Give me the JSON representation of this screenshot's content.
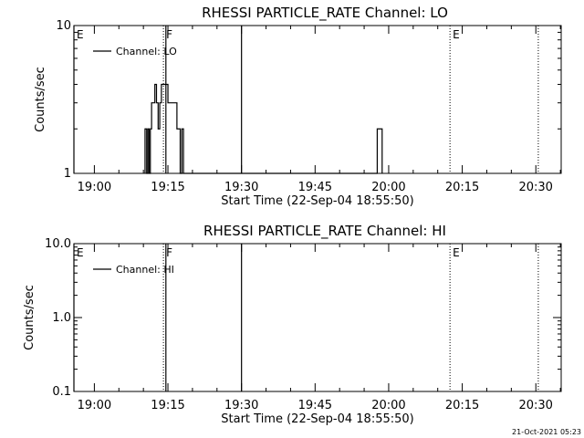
{
  "chart_data": [
    {
      "type": "line",
      "title": "RHESSI PARTICLE_RATE Channel: LO",
      "xlabel": "Start Time (22-Sep-04 18:55:50)",
      "ylabel": "Counts/sec",
      "yscale": "log",
      "ylim": [
        1,
        10
      ],
      "xlim": [
        "18:55:50",
        "20:35:10"
      ],
      "x_ticks": [
        "19:00",
        "19:15",
        "19:30",
        "19:45",
        "20:00",
        "20:15",
        "20:30"
      ],
      "y_ticks": [
        "1",
        "10"
      ],
      "grid": false,
      "legend": {
        "position": "top-left",
        "entries": [
          "Channel: LO"
        ]
      },
      "markers": [
        {
          "label": "E",
          "time": "18:55:50",
          "style": "solid"
        },
        {
          "label": "F",
          "time": "19:14:05",
          "style": "dotted"
        },
        {
          "label": "",
          "time": "19:14:35",
          "style": "solid"
        },
        {
          "label": "",
          "time": "19:30:00",
          "style": "solid"
        },
        {
          "label": "E",
          "time": "20:12:30",
          "style": "dotted"
        },
        {
          "label": "",
          "time": "20:30:30",
          "style": "dotted"
        }
      ],
      "series": [
        {
          "name": "Channel: LO",
          "color": "#000000",
          "points": [
            [
              "19:10:20",
              1
            ],
            [
              "19:10:20",
              2
            ],
            [
              "19:10:40",
              2
            ],
            [
              "19:10:40",
              1
            ],
            [
              "19:10:55",
              1
            ],
            [
              "19:10:55",
              2
            ],
            [
              "19:11:10",
              2
            ],
            [
              "19:11:10",
              1
            ],
            [
              "19:11:25",
              1
            ],
            [
              "19:11:25",
              2
            ],
            [
              "19:11:40",
              2
            ],
            [
              "19:11:40",
              3
            ],
            [
              "19:12:20",
              3
            ],
            [
              "19:12:20",
              4
            ],
            [
              "19:12:40",
              4
            ],
            [
              "19:12:40",
              3
            ],
            [
              "19:13:00",
              3
            ],
            [
              "19:13:00",
              2
            ],
            [
              "19:13:20",
              2
            ],
            [
              "19:13:20",
              3
            ],
            [
              "19:13:40",
              3
            ],
            [
              "19:13:40",
              4
            ],
            [
              "19:15:00",
              4
            ],
            [
              "19:15:00",
              3
            ],
            [
              "19:16:50",
              3
            ],
            [
              "19:16:50",
              2
            ],
            [
              "19:17:30",
              2
            ],
            [
              "19:17:30",
              1
            ],
            [
              "19:17:50",
              1
            ],
            [
              "19:17:50",
              2
            ],
            [
              "19:18:10",
              2
            ],
            [
              "19:18:10",
              1
            ],
            [
              "19:57:40",
              1
            ],
            [
              "19:57:40",
              2
            ],
            [
              "19:58:40",
              2
            ],
            [
              "19:58:40",
              1
            ]
          ]
        }
      ]
    },
    {
      "type": "line",
      "title": "RHESSI PARTICLE_RATE Channel: HI",
      "xlabel": "Start Time (22-Sep-04 18:55:50)",
      "ylabel": "Counts/sec",
      "yscale": "log",
      "ylim": [
        0.1,
        10
      ],
      "xlim": [
        "18:55:50",
        "20:35:10"
      ],
      "x_ticks": [
        "19:00",
        "19:15",
        "19:30",
        "19:45",
        "20:00",
        "20:15",
        "20:30"
      ],
      "y_ticks": [
        "0.1",
        "1.0",
        "10.0"
      ],
      "grid": false,
      "legend": {
        "position": "top-left",
        "entries": [
          "Channel: HI"
        ]
      },
      "markers": [
        {
          "label": "E",
          "time": "18:55:50",
          "style": "solid"
        },
        {
          "label": "F",
          "time": "19:14:05",
          "style": "dotted"
        },
        {
          "label": "",
          "time": "19:14:35",
          "style": "solid"
        },
        {
          "label": "",
          "time": "19:30:00",
          "style": "solid"
        },
        {
          "label": "E",
          "time": "20:12:30",
          "style": "dotted"
        },
        {
          "label": "",
          "time": "20:30:30",
          "style": "dotted"
        }
      ],
      "series": [
        {
          "name": "Channel: HI",
          "color": "#000000",
          "points": []
        }
      ]
    }
  ],
  "footer": {
    "timestamp": "21-Oct-2021 05:23"
  }
}
